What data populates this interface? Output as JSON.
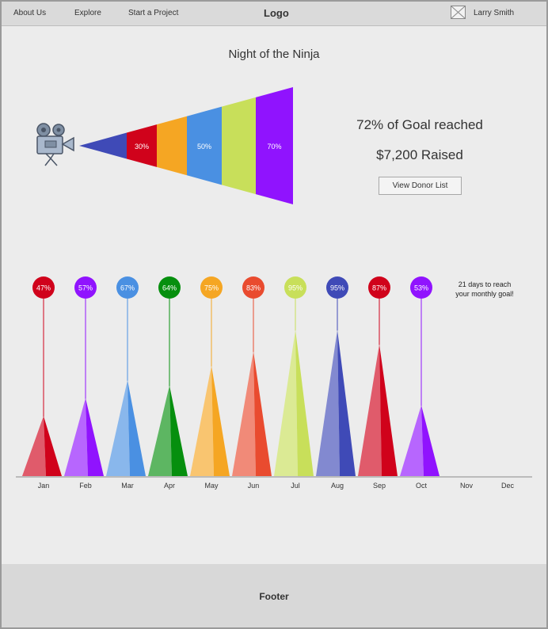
{
  "nav": {
    "links": [
      "About Us",
      "Explore",
      "Start a Project"
    ],
    "logo": "Logo",
    "user_name": "Larry Smith"
  },
  "project": {
    "title": "Night of the Ninja",
    "goal_text": "72% of Goal reached",
    "raised_text": "$7,200 Raised",
    "donor_button": "View Donor List",
    "icon": "film-camera-icon"
  },
  "funnel": {
    "segments": [
      {
        "color": "#3f4ab7",
        "label": ""
      },
      {
        "color": "#d0021b",
        "label": "30%"
      },
      {
        "color": "#f5a623",
        "label": ""
      },
      {
        "color": "#4a90e2",
        "label": "50%"
      },
      {
        "color": "#c8df5a",
        "label": ""
      },
      {
        "color": "#9013fe",
        "label": "70%"
      }
    ]
  },
  "monthly": {
    "note_line1": "21 days to reach",
    "note_line2": "your monthly goal!"
  },
  "chart_data": {
    "type": "bar",
    "categories": [
      "Jan",
      "Feb",
      "Mar",
      "Apr",
      "May",
      "Jun",
      "Jul",
      "Aug",
      "Sep",
      "Oct",
      "Nov",
      "Dec"
    ],
    "values": [
      47,
      57,
      67,
      64,
      75,
      83,
      95,
      95,
      87,
      53,
      null,
      null
    ],
    "value_labels": [
      "47%",
      "57%",
      "67%",
      "64%",
      "75%",
      "83%",
      "95%",
      "95%",
      "87%",
      "53%",
      "",
      ""
    ],
    "colors": [
      "#d0021b",
      "#9013fe",
      "#4a90e2",
      "#068f0e",
      "#f5a623",
      "#e94b2f",
      "#c8df5a",
      "#3f4ab7",
      "#d0021b",
      "#9013fe",
      "",
      ""
    ],
    "ylim": [
      0,
      100
    ],
    "grid": false,
    "legend": "none"
  },
  "footer": {
    "label": "Footer"
  }
}
